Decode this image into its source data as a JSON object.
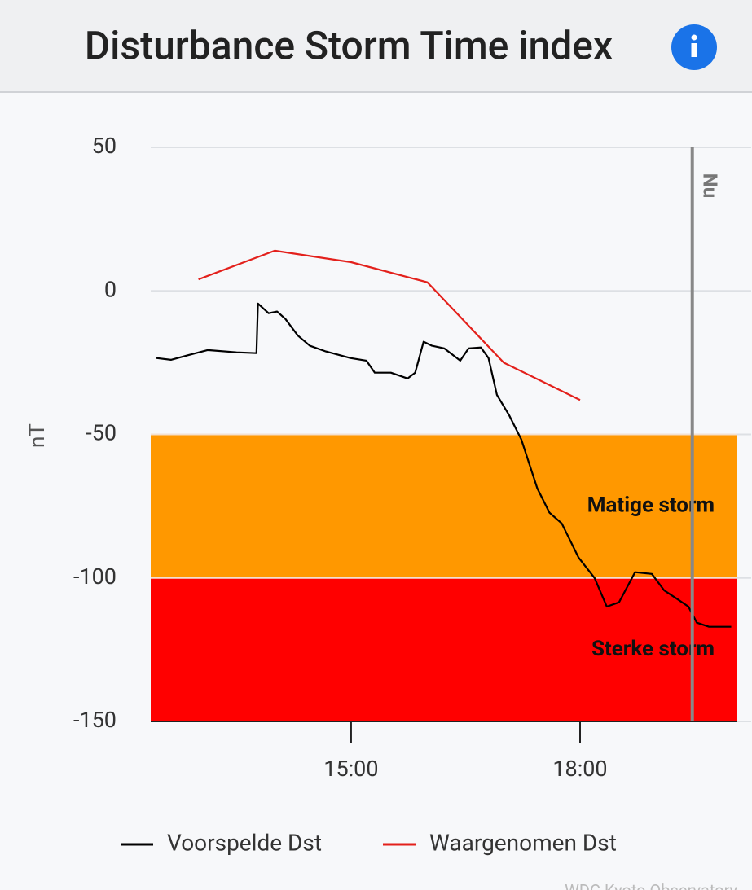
{
  "chart_data": {
    "type": "line",
    "title": "Disturbance Storm Time index",
    "ylabel": "nT",
    "ylim": [
      -150,
      50
    ],
    "yticks": [
      50,
      0,
      -50,
      -100,
      -150
    ],
    "xlim": [
      12.375,
      20.06
    ],
    "xticks": [
      {
        "value": 15,
        "label": "15:00"
      },
      {
        "value": 18,
        "label": "18:00"
      }
    ],
    "grid": true,
    "bands": [
      {
        "label": "Matige storm",
        "range": [
          -100,
          -50
        ],
        "color": "#ff9800"
      },
      {
        "label": "Sterke storm",
        "range": [
          -150,
          -100
        ],
        "color": "#ff0000"
      }
    ],
    "now_line": {
      "label": "Nu",
      "value": 19.47
    },
    "series": [
      {
        "name": "Voorspelde Dst",
        "color": "#000000",
        "x": [
          12.45,
          12.64,
          12.85,
          13.12,
          13.5,
          13.76,
          13.78,
          13.92,
          14.03,
          14.14,
          14.3,
          14.46,
          14.67,
          14.99,
          15.2,
          15.31,
          15.52,
          15.74,
          15.84,
          15.95,
          16.06,
          16.22,
          16.43,
          16.54,
          16.7,
          16.8,
          16.91,
          17.07,
          17.23,
          17.44,
          17.6,
          17.76,
          17.98,
          18.19,
          18.35,
          18.51,
          18.72,
          18.94,
          19.1,
          19.26,
          19.42,
          19.53,
          19.69,
          19.85,
          19.98
        ],
        "values": [
          -23.4,
          -24,
          -22.5,
          -20.6,
          -21.4,
          -21.7,
          -4.4,
          -7.8,
          -7.2,
          -9.8,
          -15.5,
          -19.1,
          -21.1,
          -23.4,
          -24.3,
          -28.5,
          -28.5,
          -30.5,
          -28.5,
          -17.7,
          -19.1,
          -20,
          -24.3,
          -20,
          -19.7,
          -23.4,
          -36.2,
          -43.3,
          -51.8,
          -68.8,
          -77.3,
          -81,
          -92.9,
          -100,
          -110,
          -108.5,
          -98,
          -98.6,
          -104.3,
          -107.1,
          -110,
          -115.6,
          -117,
          -117,
          -117
        ]
      },
      {
        "name": "Waargenomen Dst",
        "color": "#e3201b",
        "x": [
          13,
          14,
          15,
          16,
          17,
          18
        ],
        "values": [
          4,
          14,
          10,
          3,
          -25,
          -38
        ]
      }
    ],
    "source": "WDC Kyoto Observatory"
  }
}
